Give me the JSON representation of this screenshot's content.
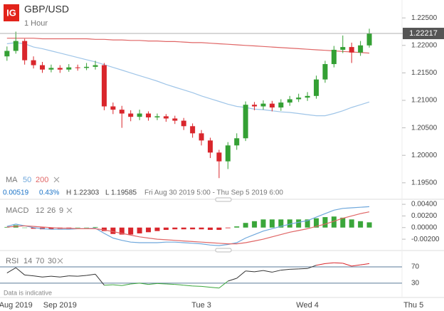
{
  "header": {
    "logo": "IG",
    "info": [
      "0.00519",
      "0.43%",
      "H 1.22303",
      "L 1.19585",
      "Fri Aug 30 2019 5:00 - Thu Sep 5 2019 6:00"
    ],
    "note": "Data is indicative"
  },
  "chart_data": [
    {
      "type": "candlestick",
      "title": "GBP/USD",
      "subtitle": "1 Hour",
      "indicator_label": "MA",
      "up_color": "#34a034",
      "down_color": "#d9262c",
      "open": [
        null,
        1.218,
        1.219,
        1.2208,
        1.2173,
        1.2164,
        1.2156,
        1.2159,
        1.2156,
        1.216,
        1.2159,
        1.2161,
        1.2164,
        1.2089,
        1.2083,
        1.2076,
        1.207,
        1.2076,
        1.2069,
        1.2071,
        1.2067,
        1.2063,
        1.2053,
        1.204,
        1.2027,
        1.2005,
        1.1989,
        1.2018,
        1.2031,
        1.2092,
        1.2089,
        1.2094,
        1.2087,
        1.2096,
        1.2102,
        1.2105,
        1.2108,
        1.2138,
        1.2166,
        1.2192,
        1.2197,
        1.2187,
        1.22,
        null,
        null,
        null,
        null,
        null
      ],
      "high": [
        null,
        1.2198,
        1.2225,
        1.2212,
        1.218,
        1.217,
        1.2165,
        1.2164,
        1.2166,
        1.2165,
        1.2168,
        1.2172,
        1.2168,
        1.2096,
        1.209,
        1.2082,
        1.2083,
        1.208,
        1.2076,
        1.2075,
        1.2072,
        1.2068,
        1.2058,
        1.2046,
        1.2032,
        1.201,
        1.2024,
        1.204,
        1.2098,
        1.2097,
        1.21,
        1.2099,
        1.2102,
        1.2108,
        1.2112,
        1.2115,
        1.2145,
        1.2172,
        1.2199,
        1.2218,
        1.2205,
        1.2208,
        1.22303,
        null,
        null,
        null,
        null,
        null
      ],
      "low": [
        null,
        1.2172,
        1.2185,
        1.2165,
        1.2158,
        1.215,
        1.2151,
        1.215,
        1.2152,
        1.2154,
        1.2155,
        1.2156,
        1.2082,
        1.2075,
        1.205,
        1.2062,
        1.2064,
        1.2063,
        1.2064,
        1.2061,
        1.2057,
        1.2046,
        1.2032,
        1.2018,
        1.1995,
        1.19585,
        1.1975,
        1.201,
        1.2026,
        1.2082,
        1.2083,
        1.208,
        1.2081,
        1.209,
        1.2097,
        1.2099,
        1.2103,
        1.2132,
        1.216,
        1.2186,
        1.2168,
        1.2181,
        1.2196,
        null,
        null,
        null,
        null,
        null
      ],
      "close": [
        null,
        1.219,
        1.2208,
        1.2173,
        1.2164,
        1.2156,
        1.2159,
        1.2156,
        1.216,
        1.2159,
        1.2161,
        1.2164,
        1.2089,
        1.2083,
        1.2076,
        1.207,
        1.2076,
        1.2069,
        1.2071,
        1.2067,
        1.2063,
        1.2053,
        1.204,
        1.2027,
        1.2005,
        1.1989,
        1.2018,
        1.2031,
        1.2092,
        1.2089,
        1.2094,
        1.2087,
        1.2096,
        1.2102,
        1.2105,
        1.2108,
        1.2138,
        1.2166,
        1.2192,
        1.2197,
        1.2187,
        1.22,
        1.22217,
        null,
        null,
        null,
        null,
        null
      ],
      "overlays": [
        {
          "name": "50",
          "color": "#9fc5e8",
          "values": [
            null,
            1.2203,
            1.2205,
            1.2203,
            1.2197,
            1.2194,
            1.219,
            1.2186,
            1.2182,
            1.2178,
            1.2174,
            1.217,
            1.2165,
            1.216,
            1.2155,
            1.215,
            1.2145,
            1.214,
            1.2135,
            1.2129,
            1.2124,
            1.2119,
            1.2114,
            1.2108,
            1.2103,
            1.2098,
            1.2093,
            1.2089,
            1.2087,
            1.2084,
            1.2083,
            1.2081,
            1.2079,
            1.2078,
            1.2076,
            1.2074,
            1.2072,
            1.2072,
            1.2076,
            1.2081,
            1.2087,
            1.2092,
            1.2097,
            null,
            null,
            null,
            null,
            null
          ]
        },
        {
          "name": "200",
          "color": "#e06666",
          "values": [
            null,
            1.2213,
            1.2213,
            1.2213,
            1.2213,
            1.2212,
            1.2212,
            1.2212,
            1.2212,
            1.2212,
            1.2212,
            1.2211,
            1.2211,
            1.221,
            1.221,
            1.2209,
            1.2209,
            1.2208,
            1.2208,
            1.2207,
            1.2207,
            1.2206,
            1.2205,
            1.2205,
            1.2204,
            1.2203,
            1.2202,
            1.2201,
            1.22,
            1.2199,
            1.2198,
            1.2197,
            1.2196,
            1.2195,
            1.2194,
            1.2193,
            1.2192,
            1.2191,
            1.219,
            1.2189,
            1.2188,
            1.2187,
            1.2186,
            null,
            null,
            null,
            null,
            null
          ]
        }
      ],
      "ylim": [
        1.192,
        1.228
      ],
      "yticks": [
        {
          "value": 1.225,
          "label": "1.22500"
        },
        {
          "value": 1.22,
          "label": "1.22000"
        },
        {
          "value": 1.215,
          "label": "1.21500"
        },
        {
          "value": 1.21,
          "label": "1.21000"
        },
        {
          "value": 1.205,
          "label": "1.20500"
        },
        {
          "value": 1.2,
          "label": "1.20000"
        },
        {
          "value": 1.195,
          "label": "1.19500"
        }
      ]
    },
    {
      "type": "macd",
      "indicator_label": "MACD",
      "params": [
        12,
        26,
        9
      ],
      "series": [
        {
          "color": "#6fa8dc",
          "values": [
            null,
            0.0002,
            0.0006,
            0.0003,
            0.0,
            -0.0002,
            -0.0003,
            -0.0003,
            -0.0003,
            -0.0002,
            -0.0002,
            -0.0001,
            -0.001,
            -0.0018,
            -0.0022,
            -0.0025,
            -0.0026,
            -0.0026,
            -0.0026,
            -0.0025,
            -0.0025,
            -0.0026,
            -0.0027,
            -0.0028,
            -0.003,
            -0.0031,
            -0.0029,
            -0.0026,
            -0.0018,
            -0.0012,
            -0.0006,
            -0.0002,
            0.0002,
            0.0006,
            0.0009,
            0.0012,
            0.0018,
            0.0024,
            0.003,
            0.0033,
            0.0034,
            0.0035,
            0.0036,
            null,
            null,
            null,
            null,
            null
          ]
        },
        {
          "color": "#e06666",
          "values": [
            null,
            0.0001,
            0.0002,
            0.0003,
            0.0002,
            0.0001,
            0.0,
            -0.0001,
            -0.0001,
            -0.0002,
            -0.0002,
            -0.0002,
            -0.0004,
            -0.0007,
            -0.001,
            -0.0013,
            -0.0016,
            -0.0018,
            -0.002,
            -0.0021,
            -0.0022,
            -0.0023,
            -0.0024,
            -0.0025,
            -0.0026,
            -0.0027,
            -0.0028,
            -0.0028,
            -0.0026,
            -0.0023,
            -0.002,
            -0.0016,
            -0.0012,
            -0.0008,
            -0.0005,
            -0.0002,
            0.0002,
            0.0006,
            0.0011,
            0.0016,
            0.002,
            0.0024,
            0.0027,
            null,
            null,
            null,
            null,
            null
          ]
        }
      ],
      "histogram": {
        "up_color": "#3aa63a",
        "down_color": "#d9262c",
        "values": [
          null,
          0.0001,
          0.0004,
          0.0,
          -0.0002,
          -0.0003,
          -0.0003,
          -0.0002,
          -0.0002,
          0.0,
          0.0,
          0.0001,
          -0.0006,
          -0.0011,
          -0.0012,
          -0.0012,
          -0.001,
          -0.0008,
          -0.0006,
          -0.0004,
          -0.0003,
          -0.0003,
          -0.0003,
          -0.0003,
          -0.0004,
          -0.0004,
          -0.0001,
          0.0002,
          0.0008,
          0.0011,
          0.0014,
          0.0014,
          0.0014,
          0.0014,
          0.0014,
          0.0014,
          0.0016,
          0.0018,
          0.0019,
          0.0017,
          0.0014,
          0.0011,
          0.0009,
          null,
          null,
          null,
          null,
          null
        ]
      },
      "ylim": [
        -0.0037,
        0.0045
      ],
      "yticks": [
        {
          "value": 0.004,
          "label": "0.00400"
        },
        {
          "value": 0.002,
          "label": "0.00200"
        },
        {
          "value": 0.0,
          "label": "0.00000"
        },
        {
          "value": -0.002,
          "label": "-0.00200"
        }
      ]
    },
    {
      "type": "rsi",
      "indicator_label": "RSI",
      "params": [
        14,
        70,
        30
      ],
      "color": "#333333",
      "overbought_color": "#d9262c",
      "oversold_color": "#3aa63a",
      "level_color": "#5a7a99",
      "categories": [
        null,
        null,
        "Aug 2019",
        null,
        null,
        null,
        null,
        "Sep 2019",
        null,
        null,
        null,
        null,
        null,
        null,
        null,
        null,
        null,
        null,
        null,
        null,
        null,
        null,
        null,
        "Tue 3",
        null,
        null,
        null,
        null,
        null,
        null,
        null,
        null,
        null,
        null,
        null,
        "Wed 4",
        null,
        null,
        null,
        null,
        null,
        null,
        null,
        null,
        null,
        null,
        null,
        "Thu 5"
      ],
      "values": [
        null,
        55,
        68,
        50,
        48,
        45,
        47,
        45,
        48,
        47,
        49,
        52,
        25,
        26,
        24,
        28,
        30,
        27,
        29,
        28,
        27,
        25,
        23,
        22,
        20,
        18,
        35,
        42,
        60,
        58,
        61,
        57,
        62,
        64,
        65,
        66,
        74,
        78,
        80,
        79,
        72,
        75,
        78,
        null,
        null,
        null,
        null,
        null
      ],
      "ylim": [
        0,
        105
      ],
      "yticks": [
        70,
        30
      ]
    }
  ]
}
